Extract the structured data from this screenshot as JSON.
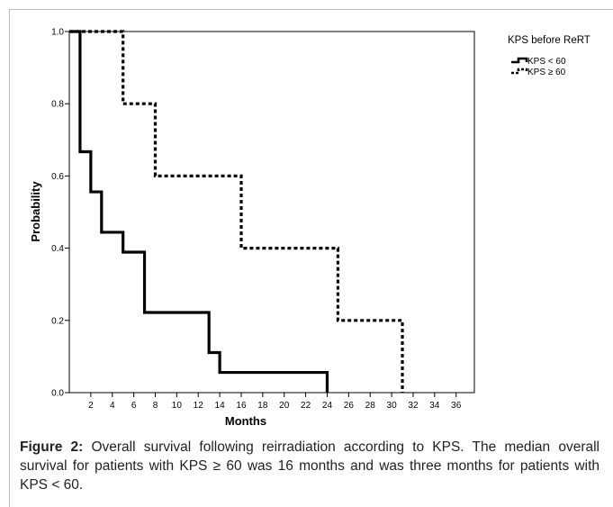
{
  "chart_data": {
    "type": "line",
    "subtype": "kaplan-meier-step",
    "xlabel": "Months",
    "ylabel": "Probability",
    "xlim": [
      0,
      37.7
    ],
    "ylim": [
      0,
      1.0
    ],
    "xticks": [
      2,
      4,
      6,
      8,
      10,
      12,
      14,
      16,
      18,
      20,
      22,
      24,
      26,
      28,
      30,
      32,
      34,
      36
    ],
    "yticks": [
      "0.0",
      "0.2",
      "0.4",
      "0.6",
      "0.8",
      "1.0"
    ],
    "yticks_values": [
      0,
      0.2,
      0.4,
      0.6,
      0.8,
      1.0
    ],
    "grid": false,
    "legend_position": "top-right",
    "legend_title": "KPS before ReRT",
    "series": [
      {
        "name": "KPS < 60",
        "style": "solid",
        "x": [
          0,
          1,
          2,
          3,
          5,
          7,
          13,
          14,
          24
        ],
        "y": [
          1.0,
          0.667,
          0.556,
          0.444,
          0.389,
          0.222,
          0.111,
          0.056,
          0.0
        ]
      },
      {
        "name": "KPS ≥ 60",
        "style": "dashed",
        "x": [
          0,
          5,
          8,
          16,
          25,
          31
        ],
        "y": [
          1.0,
          0.8,
          0.6,
          0.4,
          0.2,
          0.0
        ]
      }
    ]
  },
  "caption": {
    "label": "Figure 2:",
    "text": " Overall survival following reirradiation according to KPS. The median overall survival for patients with KPS ≥ 60 was 16 months and was three months for patients with KPS < 60."
  },
  "colors": {
    "line": "#000000",
    "axis": "#000000",
    "frame": "#bdbdbd"
  }
}
